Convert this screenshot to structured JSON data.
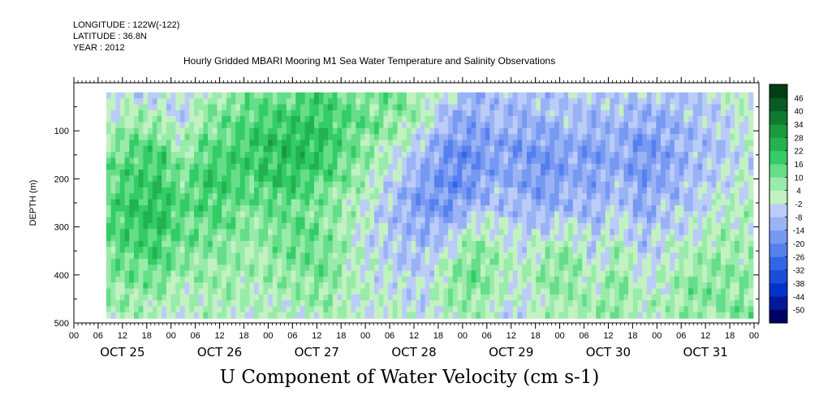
{
  "meta": {
    "longitude": "LONGITUDE : 122W(-122)",
    "latitude": "LATITUDE : 36.8N",
    "year": "YEAR : 2012"
  },
  "title": "Hourly Gridded MBARI Mooring M1 Sea Water Temperature and Salinity Observations",
  "footer_title": "U Component of Water Velocity (cm s-1)",
  "chart_data": {
    "type": "heatmap",
    "title": "Hourly Gridded MBARI Mooring M1 Sea Water Temperature and Salinity Observations",
    "xlabel": "",
    "ylabel": "DEPTH (m)",
    "x_hour_ticks": [
      "00",
      "06",
      "12",
      "18",
      "00",
      "06",
      "12",
      "18",
      "00",
      "06",
      "12",
      "18",
      "00",
      "06",
      "12",
      "18",
      "00",
      "06",
      "12",
      "18",
      "00",
      "06",
      "12",
      "18",
      "00",
      "06",
      "12",
      "18",
      "00"
    ],
    "x_day_labels": [
      "OCT 25",
      "OCT 26",
      "OCT 27",
      "OCT 28",
      "OCT 29",
      "OCT 30",
      "OCT 31"
    ],
    "xlim_days": [
      0,
      7.05
    ],
    "data_x_start_days": 0.333,
    "y_ticks": [
      100,
      200,
      300,
      400,
      500
    ],
    "ylim": [
      500,
      0
    ],
    "data_depth_range": [
      20,
      490
    ],
    "colorbar": {
      "levels": [
        -50,
        -44,
        -38,
        -32,
        -26,
        -20,
        -14,
        -8,
        -2,
        4,
        10,
        16,
        22,
        28,
        34,
        40,
        46
      ],
      "labels": [
        "46",
        "40",
        "34",
        "28",
        "22",
        "16",
        "10",
        "4",
        "-2",
        "-8",
        "-14",
        "-20",
        "-26",
        "-32",
        "-38",
        "-44",
        "-50"
      ],
      "palette": [
        "#000066",
        "#001a99",
        "#0033cc",
        "#1a4dd9",
        "#3366e6",
        "#5580ee",
        "#7799f2",
        "#99b3f5",
        "#bbccf8",
        "#c2f2c2",
        "#99ebaa",
        "#66dd88",
        "#33cc66",
        "#22b350",
        "#1a993f",
        "#0f7a30",
        "#075c22",
        "#043d15"
      ]
    },
    "columns": [
      {
        "day": 0.35,
        "v": [
          -6,
          2,
          8,
          12,
          14,
          12,
          10,
          6,
          2
        ]
      },
      {
        "day": 0.6,
        "v": [
          -4,
          6,
          14,
          18,
          20,
          18,
          12,
          8,
          4
        ]
      },
      {
        "day": 0.9,
        "v": [
          -2,
          4,
          16,
          20,
          22,
          18,
          14,
          6,
          2
        ]
      },
      {
        "day": 1.1,
        "v": [
          -8,
          -4,
          4,
          10,
          14,
          12,
          8,
          2,
          -2
        ]
      },
      {
        "day": 1.35,
        "v": [
          4,
          8,
          14,
          18,
          16,
          12,
          6,
          4,
          2
        ]
      },
      {
        "day": 1.6,
        "v": [
          8,
          12,
          16,
          18,
          14,
          10,
          8,
          6,
          4
        ]
      },
      {
        "day": 1.85,
        "v": [
          10,
          16,
          20,
          16,
          10,
          6,
          4,
          2,
          0
        ]
      },
      {
        "day": 2.1,
        "v": [
          12,
          18,
          22,
          20,
          14,
          10,
          8,
          4,
          2
        ]
      },
      {
        "day": 2.35,
        "v": [
          14,
          20,
          24,
          18,
          12,
          14,
          10,
          6,
          2
        ]
      },
      {
        "day": 2.6,
        "v": [
          16,
          18,
          20,
          14,
          8,
          10,
          12,
          8,
          4
        ]
      },
      {
        "day": 2.85,
        "v": [
          10,
          14,
          12,
          8,
          4,
          2,
          4,
          2,
          0
        ]
      },
      {
        "day": 3.1,
        "v": [
          8,
          10,
          6,
          2,
          -2,
          -4,
          -2,
          0,
          2
        ]
      },
      {
        "day": 3.35,
        "v": [
          10,
          8,
          0,
          -6,
          -10,
          -8,
          -4,
          -2,
          0
        ]
      },
      {
        "day": 3.6,
        "v": [
          6,
          2,
          -8,
          -14,
          -16,
          -10,
          -6,
          -4,
          -2
        ]
      },
      {
        "day": 3.85,
        "v": [
          -4,
          -10,
          -18,
          -20,
          -18,
          -8,
          4,
          8,
          2
        ]
      },
      {
        "day": 4.1,
        "v": [
          -10,
          -14,
          -20,
          -18,
          -10,
          6,
          14,
          10,
          4
        ]
      },
      {
        "day": 4.35,
        "v": [
          -6,
          -10,
          -14,
          -12,
          -6,
          2,
          6,
          4,
          0
        ]
      },
      {
        "day": 4.6,
        "v": [
          -8,
          -12,
          -16,
          -14,
          -10,
          -4,
          0,
          -2,
          -4
        ]
      },
      {
        "day": 4.85,
        "v": [
          -6,
          -10,
          -16,
          -18,
          -12,
          -2,
          8,
          6,
          2
        ]
      },
      {
        "day": 5.1,
        "v": [
          -4,
          -8,
          -14,
          -12,
          -8,
          4,
          10,
          8,
          4
        ]
      },
      {
        "day": 5.35,
        "v": [
          -6,
          -10,
          -16,
          -14,
          -10,
          -6,
          -2,
          4,
          6
        ]
      },
      {
        "day": 5.6,
        "v": [
          -4,
          -8,
          -12,
          -10,
          -4,
          2,
          8,
          10,
          6
        ]
      },
      {
        "day": 5.85,
        "v": [
          -6,
          -12,
          -18,
          -16,
          -12,
          -8,
          -4,
          0,
          4
        ]
      },
      {
        "day": 6.1,
        "v": [
          -8,
          -10,
          -14,
          -12,
          -8,
          -2,
          2,
          4,
          2
        ]
      },
      {
        "day": 6.35,
        "v": [
          -6,
          -8,
          -10,
          -8,
          -6,
          0,
          6,
          10,
          8
        ]
      },
      {
        "day": 6.6,
        "v": [
          -4,
          -6,
          -8,
          -4,
          0,
          4,
          8,
          10,
          6
        ]
      },
      {
        "day": 6.85,
        "v": [
          2,
          0,
          -2,
          0,
          2,
          4,
          6,
          8,
          10
        ]
      }
    ],
    "column_depths": [
      20,
      80,
      140,
      200,
      260,
      320,
      380,
      440,
      490
    ]
  }
}
